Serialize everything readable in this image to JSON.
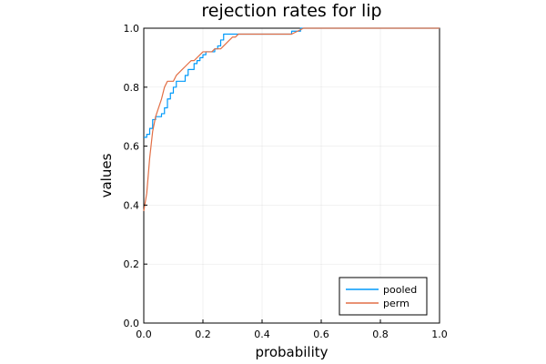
{
  "chart_data": {
    "type": "line",
    "title": "rejection rates for lip",
    "xlabel": "probability",
    "ylabel": "values",
    "xlim": [
      0,
      1
    ],
    "ylim": [
      0,
      1
    ],
    "x_ticks": [
      "0.0",
      "0.2",
      "0.4",
      "0.6",
      "0.8",
      "1.0"
    ],
    "y_ticks": [
      "0.0",
      "0.2",
      "0.4",
      "0.6",
      "0.8",
      "1.0"
    ],
    "grid": true,
    "legend_position": "bottom-right",
    "series": [
      {
        "name": "pooled",
        "color": "#009AFA",
        "step": true,
        "x": [
          0.0,
          0.01,
          0.02,
          0.03,
          0.04,
          0.05,
          0.06,
          0.07,
          0.08,
          0.09,
          0.1,
          0.11,
          0.12,
          0.13,
          0.14,
          0.15,
          0.16,
          0.17,
          0.18,
          0.19,
          0.2,
          0.21,
          0.22,
          0.23,
          0.24,
          0.25,
          0.26,
          0.27,
          0.28,
          0.3,
          0.32,
          0.35,
          0.4,
          0.45,
          0.48,
          0.5,
          0.52,
          0.53,
          0.55,
          0.6,
          0.7,
          0.8,
          0.9,
          1.0
        ],
        "y": [
          0.63,
          0.64,
          0.66,
          0.69,
          0.7,
          0.7,
          0.71,
          0.73,
          0.76,
          0.78,
          0.8,
          0.82,
          0.82,
          0.82,
          0.84,
          0.86,
          0.86,
          0.88,
          0.89,
          0.9,
          0.91,
          0.92,
          0.92,
          0.92,
          0.93,
          0.94,
          0.96,
          0.98,
          0.98,
          0.98,
          0.98,
          0.98,
          0.98,
          0.98,
          0.98,
          0.99,
          0.99,
          1.0,
          1.0,
          1.0,
          1.0,
          1.0,
          1.0,
          1.0
        ]
      },
      {
        "name": "perm",
        "color": "#E26F46",
        "step": false,
        "x": [
          0.0,
          0.01,
          0.02,
          0.03,
          0.04,
          0.05,
          0.06,
          0.07,
          0.08,
          0.09,
          0.1,
          0.11,
          0.12,
          0.13,
          0.14,
          0.15,
          0.16,
          0.17,
          0.18,
          0.19,
          0.2,
          0.21,
          0.22,
          0.23,
          0.24,
          0.25,
          0.26,
          0.27,
          0.28,
          0.29,
          0.3,
          0.31,
          0.32,
          0.35,
          0.4,
          0.45,
          0.48,
          0.5,
          0.52,
          0.54,
          0.55,
          0.6,
          0.7,
          0.8,
          0.9,
          1.0
        ],
        "y": [
          0.38,
          0.44,
          0.56,
          0.65,
          0.7,
          0.73,
          0.76,
          0.8,
          0.82,
          0.82,
          0.82,
          0.84,
          0.85,
          0.86,
          0.87,
          0.88,
          0.89,
          0.89,
          0.9,
          0.91,
          0.92,
          0.92,
          0.92,
          0.92,
          0.93,
          0.93,
          0.93,
          0.94,
          0.95,
          0.96,
          0.97,
          0.97,
          0.98,
          0.98,
          0.98,
          0.98,
          0.98,
          0.98,
          0.99,
          1.0,
          1.0,
          1.0,
          1.0,
          1.0,
          1.0,
          1.0
        ]
      }
    ]
  }
}
